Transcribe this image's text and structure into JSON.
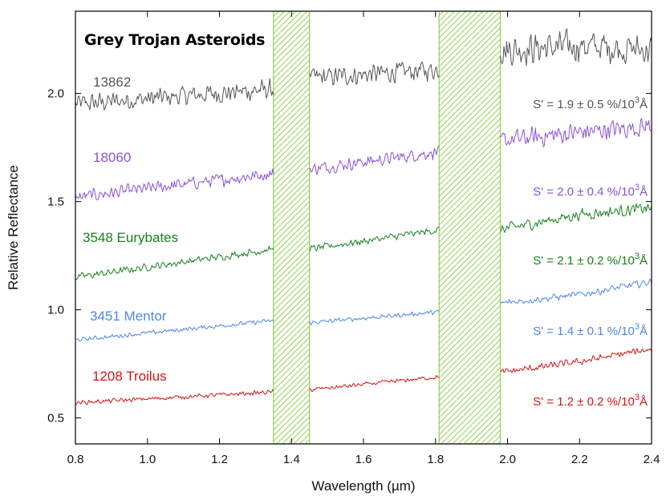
{
  "chart_data": {
    "type": "line",
    "title": "Grey Trojan Asteroids",
    "xlabel": "Wavelength (µm)",
    "ylabel": "Relative Reflectance",
    "xlim": [
      0.8,
      2.4
    ],
    "ylim": [
      0.38,
      2.38
    ],
    "xticks": [
      "0.8",
      "1.0",
      "1.2",
      "1.4",
      "1.6",
      "1.8",
      "2.0",
      "2.2",
      "2.4"
    ],
    "xtick_values": [
      0.8,
      1.0,
      1.2,
      1.4,
      1.6,
      1.8,
      2.0,
      2.2,
      2.4
    ],
    "yticks": [
      "0.5",
      "1.0",
      "1.5",
      "2.0"
    ],
    "ytick_values": [
      0.5,
      1.0,
      1.5,
      2.0
    ],
    "grid": false,
    "shaded_bands": [
      {
        "x": [
          1.35,
          1.45
        ],
        "color": "#8fd14f"
      },
      {
        "x": [
          1.81,
          1.98
        ],
        "color": "#8fd14f"
      }
    ],
    "series": [
      {
        "name": "13862",
        "color": "#555555",
        "slope_label": "S' = 1.9 ± 0.5 %/10",
        "noise": 0.055,
        "points": [
          [
            0.8,
            1.95
          ],
          [
            1.35,
            2.02
          ],
          [
            1.45,
            2.07
          ],
          [
            1.81,
            2.11
          ],
          [
            1.98,
            2.2
          ],
          [
            2.2,
            2.22
          ],
          [
            2.4,
            2.2
          ]
        ]
      },
      {
        "name": "18060",
        "color": "#8a52d6",
        "slope_label": "S' = 2.0 ± 0.4 %/10",
        "noise": 0.035,
        "points": [
          [
            0.8,
            1.52
          ],
          [
            1.35,
            1.63
          ],
          [
            1.45,
            1.65
          ],
          [
            1.81,
            1.73
          ],
          [
            1.98,
            1.78
          ],
          [
            2.2,
            1.82
          ],
          [
            2.4,
            1.85
          ]
        ]
      },
      {
        "name": "3548 Eurybates",
        "color": "#17801f",
        "slope_label": "S' = 2.1 ± 0.2 %/10",
        "noise": 0.02,
        "points": [
          [
            0.8,
            1.15
          ],
          [
            1.35,
            1.28
          ],
          [
            1.45,
            1.28
          ],
          [
            1.81,
            1.37
          ],
          [
            1.98,
            1.37
          ],
          [
            2.2,
            1.44
          ],
          [
            2.4,
            1.47
          ]
        ]
      },
      {
        "name": "3451 Mentor",
        "color": "#4f86e8",
        "slope_label": "S' = 1.4 ± 0.1 %/10",
        "noise": 0.012,
        "points": [
          [
            0.8,
            0.86
          ],
          [
            1.35,
            0.95
          ],
          [
            1.45,
            0.94
          ],
          [
            1.81,
            0.99
          ],
          [
            1.98,
            1.03
          ],
          [
            2.2,
            1.07
          ],
          [
            2.4,
            1.13
          ]
        ]
      },
      {
        "name": "1208 Troilus",
        "color": "#d41616",
        "slope_label": "S' = 1.2 ± 0.2 %/10",
        "noise": 0.012,
        "points": [
          [
            0.8,
            0.57
          ],
          [
            1.35,
            0.62
          ],
          [
            1.45,
            0.63
          ],
          [
            1.81,
            0.69
          ],
          [
            1.98,
            0.71
          ],
          [
            2.2,
            0.76
          ],
          [
            2.4,
            0.82
          ]
        ]
      }
    ],
    "slope_exponent": "3",
    "slope_unit": "Å"
  }
}
